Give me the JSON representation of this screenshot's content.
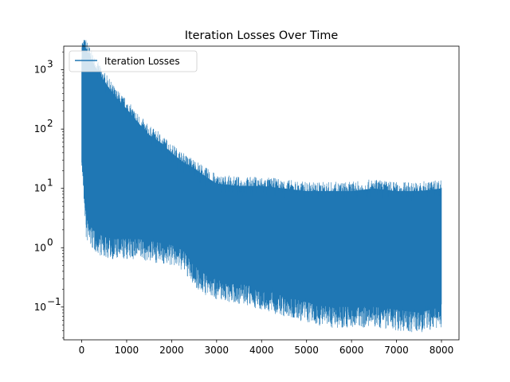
{
  "chart_data": {
    "type": "line",
    "title": "Iteration Losses Over Time",
    "xlabel": "",
    "ylabel": "",
    "x_range": [
      0,
      8000
    ],
    "y_scale": "log",
    "ylim": [
      0.028,
      2500
    ],
    "x_ticks": [
      0,
      1000,
      2000,
      3000,
      4000,
      5000,
      6000,
      7000,
      8000
    ],
    "x_tick_labels": [
      "0",
      "1000",
      "2000",
      "3000",
      "4000",
      "5000",
      "6000",
      "7000",
      "8000"
    ],
    "y_ticks": [
      0.1,
      1,
      10,
      100,
      1000
    ],
    "y_tick_labels": [
      "10",
      "10",
      "10",
      "10",
      "10"
    ],
    "y_tick_exponents": [
      "−1",
      "0",
      "1",
      "2",
      "3"
    ],
    "grid": false,
    "legend_position": "upper left",
    "series": [
      {
        "name": "Iteration Losses",
        "color": "#1f77b4",
        "envelope": {
          "x": [
            0,
            100,
            250,
            500,
            750,
            1000,
            1250,
            1500,
            1750,
            2000,
            2250,
            2500,
            2750,
            3000,
            3500,
            4000,
            4500,
            5000,
            5500,
            6000,
            6500,
            7000,
            7500,
            8000
          ],
          "upper": [
            2400,
            2300,
            1300,
            650,
            350,
            220,
            130,
            80,
            60,
            40,
            28,
            22,
            16,
            12,
            11,
            11,
            10,
            9,
            9,
            9,
            10,
            9,
            9,
            10
          ],
          "lower": [
            50,
            3,
            2,
            1.5,
            1.4,
            1.4,
            1.4,
            1.3,
            1.2,
            1.1,
            0.9,
            0.5,
            0.35,
            0.3,
            0.25,
            0.2,
            0.15,
            0.12,
            0.1,
            0.1,
            0.1,
            0.09,
            0.08,
            0.1
          ]
        }
      }
    ]
  }
}
